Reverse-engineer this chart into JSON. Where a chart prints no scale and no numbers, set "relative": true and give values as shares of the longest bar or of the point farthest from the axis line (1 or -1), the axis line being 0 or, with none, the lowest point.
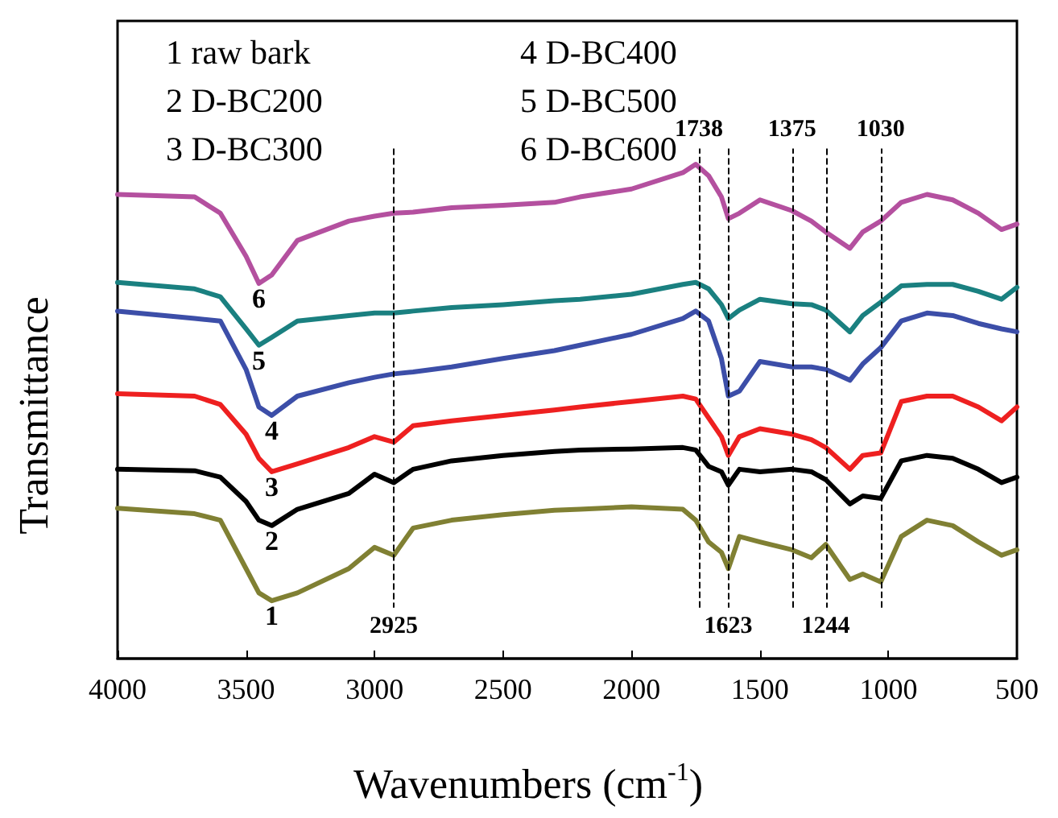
{
  "chart_data": {
    "type": "line",
    "xlabel": "Wavenumbers (cm$^{-1}$)",
    "ylabel": "Transmittance",
    "relative": true,
    "tick_labels": "x",
    "grid": false,
    "legend": false,
    "marker": "none",
    "line_style": "solid",
    "x": [
      4000,
      3700,
      3600,
      3500,
      3450,
      3400,
      3300,
      3100,
      3000,
      2925,
      2850,
      2700,
      2500,
      2300,
      2200,
      2000,
      1800,
      1750,
      1700,
      1650,
      1623,
      1580,
      1500,
      1375,
      1300,
      1244,
      1150,
      1100,
      1030,
      950,
      850,
      750,
      650,
      560,
      500
    ],
    "xlim": [
      4000,
      500
    ],
    "xticks": [
      4000,
      3500,
      3000,
      2500,
      2000,
      1500,
      1000,
      500
    ],
    "series": [
      {
        "name": "1",
        "color": "#808033",
        "values": [
          0.304,
          0.293,
          0.28,
          0.182,
          0.133,
          0.117,
          0.133,
          0.182,
          0.225,
          0.209,
          0.264,
          0.28,
          0.291,
          0.3,
          0.302,
          0.307,
          0.302,
          0.28,
          0.236,
          0.215,
          0.182,
          0.247,
          0.236,
          0.22,
          0.204,
          0.231,
          0.16,
          0.171,
          0.155,
          0.247,
          0.28,
          0.269,
          0.236,
          0.209,
          0.22
        ]
      },
      {
        "name": "2",
        "color": "#000000",
        "values": [
          0.383,
          0.38,
          0.367,
          0.318,
          0.28,
          0.269,
          0.302,
          0.334,
          0.373,
          0.356,
          0.383,
          0.4,
          0.411,
          0.419,
          0.422,
          0.424,
          0.427,
          0.422,
          0.389,
          0.378,
          0.351,
          0.383,
          0.378,
          0.383,
          0.378,
          0.362,
          0.313,
          0.329,
          0.324,
          0.4,
          0.411,
          0.405,
          0.383,
          0.356,
          0.367
        ]
      },
      {
        "name": "3",
        "color": "#ee2020",
        "values": [
          0.536,
          0.531,
          0.514,
          0.454,
          0.405,
          0.378,
          0.394,
          0.427,
          0.449,
          0.438,
          0.471,
          0.481,
          0.492,
          0.503,
          0.509,
          0.52,
          0.531,
          0.525,
          0.487,
          0.449,
          0.411,
          0.449,
          0.465,
          0.454,
          0.443,
          0.427,
          0.383,
          0.411,
          0.416,
          0.52,
          0.531,
          0.531,
          0.509,
          0.481,
          0.509
        ]
      },
      {
        "name": "4",
        "color": "#3c4ea8",
        "values": [
          0.703,
          0.688,
          0.683,
          0.585,
          0.509,
          0.492,
          0.531,
          0.558,
          0.569,
          0.576,
          0.58,
          0.59,
          0.607,
          0.623,
          0.634,
          0.656,
          0.688,
          0.703,
          0.683,
          0.607,
          0.531,
          0.541,
          0.601,
          0.59,
          0.59,
          0.585,
          0.563,
          0.596,
          0.629,
          0.683,
          0.699,
          0.694,
          0.678,
          0.667,
          0.661
        ]
      },
      {
        "name": "5",
        "color": "#1a8080",
        "values": [
          0.761,
          0.748,
          0.732,
          0.667,
          0.634,
          0.65,
          0.683,
          0.694,
          0.699,
          0.699,
          0.703,
          0.71,
          0.716,
          0.724,
          0.727,
          0.737,
          0.757,
          0.761,
          0.748,
          0.716,
          0.688,
          0.705,
          0.727,
          0.718,
          0.716,
          0.705,
          0.661,
          0.694,
          0.721,
          0.754,
          0.757,
          0.757,
          0.743,
          0.727,
          0.751
        ]
      },
      {
        "name": "6",
        "color": "#b4509f",
        "values": [
          0.939,
          0.934,
          0.901,
          0.814,
          0.759,
          0.776,
          0.846,
          0.885,
          0.895,
          0.901,
          0.903,
          0.912,
          0.917,
          0.923,
          0.934,
          0.95,
          0.983,
          1.0,
          0.977,
          0.934,
          0.89,
          0.901,
          0.928,
          0.906,
          0.885,
          0.863,
          0.83,
          0.863,
          0.885,
          0.923,
          0.939,
          0.928,
          0.901,
          0.868,
          0.879
        ]
      }
    ],
    "ref_lines": [
      {
        "axis": "x",
        "value": 2925,
        "label": "2925",
        "color": "#000000",
        "line_style": "dashed"
      },
      {
        "axis": "x",
        "value": 1738,
        "label": "1738",
        "color": "#000000",
        "line_style": "dashed"
      },
      {
        "axis": "x",
        "value": 1623,
        "label": "1623",
        "color": "#000000",
        "line_style": "dashed"
      },
      {
        "axis": "x",
        "value": 1375,
        "label": "1375",
        "color": "#000000",
        "line_style": "dashed"
      },
      {
        "axis": "x",
        "value": 1244,
        "label": "1244",
        "color": "#000000",
        "line_style": "dashed"
      },
      {
        "axis": "x",
        "value": 1030,
        "label": "1030",
        "color": "#000000",
        "line_style": "dashed"
      }
    ],
    "annotations": [
      "1 raw bark",
      "2 D-BC200",
      "3 D-BC300",
      "4 D-BC400",
      "5 D-BC500",
      "6 D-BC600"
    ]
  }
}
